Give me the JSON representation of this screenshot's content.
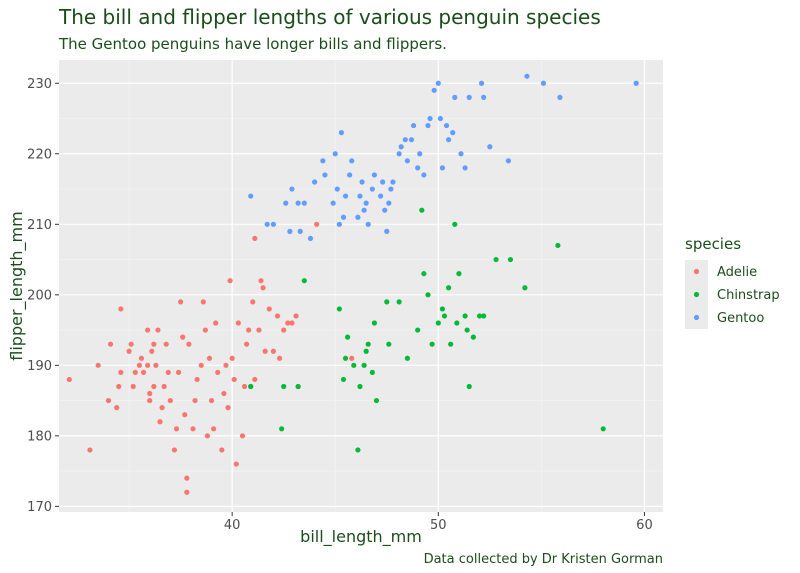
{
  "chart_data": {
    "type": "scatter",
    "title": "The bill and flipper lengths of various penguin species",
    "subtitle": "The Gentoo penguins have longer bills and flippers.",
    "caption": "Data collected by Dr Kristen Gorman",
    "xlabel": "bill_length_mm",
    "ylabel": "flipper_length_mm",
    "xlim": [
      31.6,
      60.9
    ],
    "ylim": [
      169.2,
      233.3
    ],
    "x_ticks": [
      40,
      50,
      60
    ],
    "y_ticks": [
      170,
      180,
      190,
      200,
      210,
      220,
      230
    ],
    "grid": true,
    "legend": {
      "title": "species",
      "position": "right"
    },
    "colors": {
      "title": "#1b4d1b",
      "panel": "#ebebeb",
      "grid": "#ffffff",
      "tick": "#4d4d4d"
    },
    "series": [
      {
        "name": "Adelie",
        "color": "#F8766D",
        "points": [
          [
            32.1,
            188
          ],
          [
            33.1,
            178
          ],
          [
            33.5,
            190
          ],
          [
            34.0,
            185
          ],
          [
            34.1,
            193
          ],
          [
            34.4,
            184
          ],
          [
            34.5,
            187
          ],
          [
            34.6,
            189
          ],
          [
            34.6,
            198
          ],
          [
            35.0,
            192
          ],
          [
            35.1,
            193
          ],
          [
            35.2,
            187
          ],
          [
            35.3,
            189
          ],
          [
            35.5,
            190
          ],
          [
            35.6,
            191
          ],
          [
            35.7,
            189
          ],
          [
            35.9,
            190
          ],
          [
            35.9,
            195
          ],
          [
            36.0,
            185
          ],
          [
            36.0,
            186
          ],
          [
            36.2,
            187
          ],
          [
            36.2,
            193
          ],
          [
            36.3,
            190
          ],
          [
            36.4,
            195
          ],
          [
            36.5,
            182
          ],
          [
            36.6,
            184
          ],
          [
            36.7,
            187
          ],
          [
            36.8,
            193
          ],
          [
            36.9,
            189
          ],
          [
            37.0,
            185
          ],
          [
            37.2,
            178
          ],
          [
            37.3,
            181
          ],
          [
            37.5,
            199
          ],
          [
            37.6,
            194
          ],
          [
            37.7,
            183
          ],
          [
            37.8,
            174
          ],
          [
            37.8,
            172
          ],
          [
            37.9,
            193
          ],
          [
            38.1,
            181
          ],
          [
            38.2,
            185
          ],
          [
            38.3,
            188
          ],
          [
            38.5,
            190
          ],
          [
            38.6,
            199
          ],
          [
            38.8,
            180
          ],
          [
            38.9,
            191
          ],
          [
            39.0,
            185
          ],
          [
            39.1,
            181
          ],
          [
            39.2,
            196
          ],
          [
            39.3,
            189
          ],
          [
            39.5,
            178
          ],
          [
            39.6,
            186
          ],
          [
            39.7,
            190
          ],
          [
            39.8,
            184
          ],
          [
            40.0,
            191
          ],
          [
            40.1,
            188
          ],
          [
            40.2,
            176
          ],
          [
            40.3,
            196
          ],
          [
            40.5,
            180
          ],
          [
            40.6,
            187
          ],
          [
            40.7,
            193
          ],
          [
            40.8,
            195
          ],
          [
            40.9,
            187
          ],
          [
            41.0,
            199
          ],
          [
            41.1,
            208
          ],
          [
            41.1,
            188
          ],
          [
            41.3,
            195
          ],
          [
            41.4,
            202
          ],
          [
            41.5,
            201
          ],
          [
            41.6,
            192
          ],
          [
            41.8,
            198
          ],
          [
            42.0,
            192
          ],
          [
            42.2,
            197
          ],
          [
            42.3,
            191
          ],
          [
            42.5,
            195
          ],
          [
            42.7,
            196
          ],
          [
            42.9,
            196
          ],
          [
            43.1,
            197
          ],
          [
            43.2,
            187
          ],
          [
            44.1,
            210
          ],
          [
            45.8,
            191
          ],
          [
            39.9,
            202
          ],
          [
            38.7,
            195
          ],
          [
            37.4,
            189
          ],
          [
            36.1,
            192
          ]
        ]
      },
      {
        "name": "Chinstrap",
        "color": "#00BA38",
        "points": [
          [
            40.9,
            187
          ],
          [
            42.4,
            181
          ],
          [
            42.5,
            187
          ],
          [
            43.2,
            187
          ],
          [
            43.5,
            202
          ],
          [
            45.2,
            198
          ],
          [
            45.4,
            188
          ],
          [
            45.5,
            191
          ],
          [
            45.6,
            194
          ],
          [
            45.9,
            190
          ],
          [
            46.1,
            178
          ],
          [
            46.2,
            187
          ],
          [
            46.4,
            190
          ],
          [
            46.5,
            192
          ],
          [
            46.6,
            193
          ],
          [
            46.8,
            189
          ],
          [
            46.9,
            196
          ],
          [
            47.0,
            185
          ],
          [
            47.5,
            199
          ],
          [
            47.6,
            193
          ],
          [
            48.1,
            199
          ],
          [
            48.5,
            191
          ],
          [
            49.0,
            195
          ],
          [
            49.2,
            212
          ],
          [
            49.3,
            203
          ],
          [
            49.5,
            200
          ],
          [
            49.7,
            193
          ],
          [
            50.0,
            196
          ],
          [
            50.2,
            198
          ],
          [
            50.3,
            197
          ],
          [
            50.5,
            201
          ],
          [
            50.6,
            193
          ],
          [
            50.8,
            210
          ],
          [
            50.9,
            196
          ],
          [
            51.0,
            203
          ],
          [
            51.3,
            197
          ],
          [
            51.4,
            195
          ],
          [
            51.5,
            187
          ],
          [
            51.7,
            194
          ],
          [
            52.0,
            197
          ],
          [
            52.2,
            197
          ],
          [
            52.8,
            205
          ],
          [
            53.5,
            205
          ],
          [
            54.2,
            201
          ],
          [
            55.8,
            207
          ],
          [
            58.0,
            181
          ]
        ]
      },
      {
        "name": "Gentoo",
        "color": "#619CFF",
        "points": [
          [
            40.9,
            214
          ],
          [
            41.7,
            210
          ],
          [
            42.0,
            210
          ],
          [
            42.6,
            213
          ],
          [
            42.8,
            209
          ],
          [
            42.9,
            215
          ],
          [
            43.2,
            213
          ],
          [
            43.3,
            209
          ],
          [
            43.5,
            213
          ],
          [
            43.8,
            208
          ],
          [
            44.0,
            216
          ],
          [
            44.4,
            219
          ],
          [
            44.5,
            217
          ],
          [
            44.9,
            213
          ],
          [
            45.0,
            220
          ],
          [
            45.1,
            215
          ],
          [
            45.2,
            210
          ],
          [
            45.3,
            223
          ],
          [
            45.4,
            211
          ],
          [
            45.5,
            214
          ],
          [
            45.7,
            217
          ],
          [
            45.8,
            219
          ],
          [
            46.1,
            211
          ],
          [
            46.2,
            214
          ],
          [
            46.3,
            216
          ],
          [
            46.4,
            212
          ],
          [
            46.5,
            213
          ],
          [
            46.6,
            210
          ],
          [
            46.8,
            215
          ],
          [
            46.9,
            217
          ],
          [
            47.2,
            214
          ],
          [
            47.3,
            216
          ],
          [
            47.4,
            212
          ],
          [
            47.5,
            209
          ],
          [
            47.6,
            213
          ],
          [
            47.7,
            215
          ],
          [
            47.8,
            216
          ],
          [
            48.1,
            220
          ],
          [
            48.2,
            221
          ],
          [
            48.4,
            222
          ],
          [
            48.5,
            219
          ],
          [
            48.7,
            222
          ],
          [
            48.8,
            224
          ],
          [
            49.0,
            218
          ],
          [
            49.1,
            220
          ],
          [
            49.3,
            217
          ],
          [
            49.5,
            224
          ],
          [
            49.6,
            225
          ],
          [
            49.8,
            229
          ],
          [
            50.0,
            230
          ],
          [
            50.1,
            225
          ],
          [
            50.2,
            218
          ],
          [
            50.4,
            224
          ],
          [
            50.5,
            222
          ],
          [
            50.7,
            223
          ],
          [
            50.8,
            228
          ],
          [
            51.1,
            220
          ],
          [
            51.3,
            218
          ],
          [
            51.5,
            228
          ],
          [
            52.1,
            230
          ],
          [
            52.2,
            228
          ],
          [
            52.5,
            221
          ],
          [
            53.4,
            219
          ],
          [
            54.3,
            231
          ],
          [
            55.1,
            230
          ],
          [
            55.9,
            228
          ],
          [
            59.6,
            230
          ]
        ]
      }
    ]
  }
}
